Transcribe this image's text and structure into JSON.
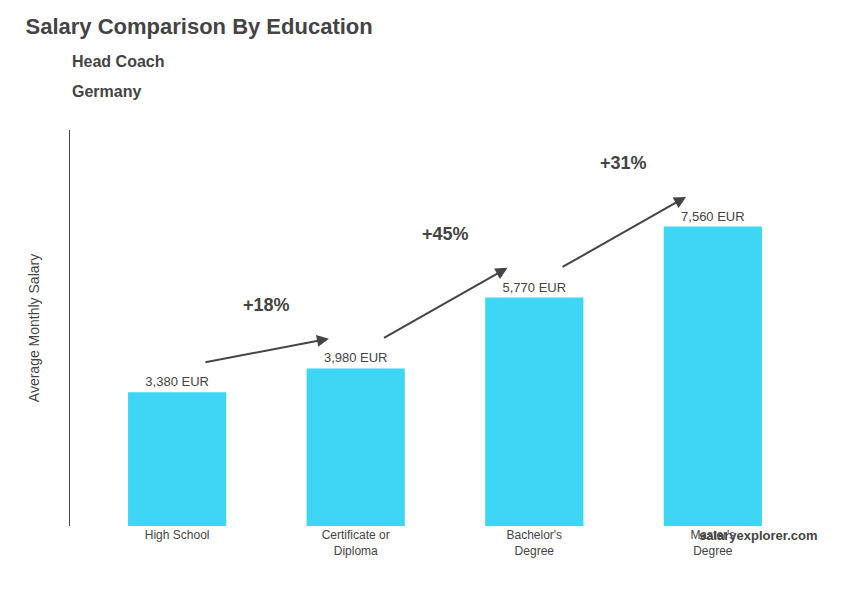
{
  "chart_data": {
    "type": "bar",
    "title": "Salary Comparison By Education",
    "subtitle": [
      "Head Coach",
      "Germany"
    ],
    "ylabel": "Average Monthly Salary",
    "categories": [
      "High School",
      "Certificate or\nDiploma",
      "Bachelor's\nDegree",
      "Master's\nDegree"
    ],
    "values": [
      3380,
      3980,
      5770,
      7560
    ],
    "value_labels": [
      "3,380 EUR",
      "3,980 EUR",
      "5,770 EUR",
      "7,560 EUR"
    ],
    "data_labels": true,
    "color": "#3dd6f5",
    "ylim": [
      0,
      10000
    ],
    "grid": false,
    "tick_labels": "x",
    "annotations": [
      {
        "text": "+18%",
        "from": "High School",
        "to": "Certificate or\nDiploma"
      },
      {
        "text": "+45%",
        "from": "Certificate or\nDiploma",
        "to": "Bachelor's\nDegree"
      },
      {
        "text": "+31%",
        "from": "Bachelor's\nDegree",
        "to": "Master's\nDegree"
      },
      {
        "text": "salaryexplorer.com"
      }
    ]
  }
}
